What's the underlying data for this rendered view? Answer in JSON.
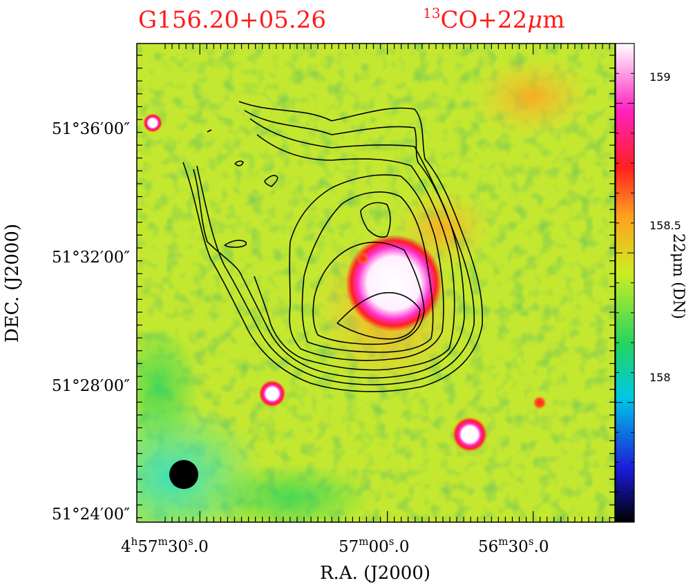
{
  "chart_data": {
    "type": "heatmap",
    "title_left": "G156.20+05.26",
    "title_right": {
      "sup": "13",
      "text": "CO+22",
      "mu": "μ",
      "tail": "m"
    },
    "xlabel": "R.A.  (J2000)",
    "ylabel": "DEC.  (J2000)",
    "x_ticks": [
      {
        "h": "4",
        "hu": "h",
        "m": "57",
        "mu": "m",
        "s": "30",
        "su": "s",
        "f": "0"
      },
      {
        "m": "57",
        "mu": "m",
        "s": "00",
        "su": "s",
        "f": "0"
      },
      {
        "m": "56",
        "mu": "m",
        "s": "30",
        "su": "s",
        "f": "0"
      }
    ],
    "y_ticks": [
      "51°36′00″",
      "51°32′00″",
      "51°28′00″",
      "51°24′00″"
    ],
    "colorbar": {
      "label": "22μm  (DN)",
      "ticks": [
        "159",
        "158.5",
        "158"
      ],
      "tick_values": [
        159,
        158.5,
        158
      ],
      "range": [
        157.6,
        159.2
      ],
      "colors": [
        "#000000",
        "#1a1ad8",
        "#00c8e6",
        "#22d460",
        "#ccee22",
        "#ffa020",
        "#ff2020",
        "#ff20c0",
        "#ffffff"
      ]
    },
    "background_level": 158.3,
    "compact_sources": [
      {
        "ra": "4h57m22s",
        "dec": "51°30′40″",
        "level": 159.2
      },
      {
        "ra": "4h57m45s",
        "dec": "51°36′20″",
        "level": 159.0
      },
      {
        "ra": "4h57m18s",
        "dec": "51°27′30″",
        "level": 159.0
      },
      {
        "ra": "4h56m46s",
        "dec": "51°26′30″",
        "level": 159.1
      },
      {
        "ra": "4h56m27s",
        "dec": "51°27′10″",
        "level": 158.7
      }
    ],
    "contours": {
      "levels": 8,
      "color": "#000000"
    },
    "beam": "filled-circle"
  }
}
